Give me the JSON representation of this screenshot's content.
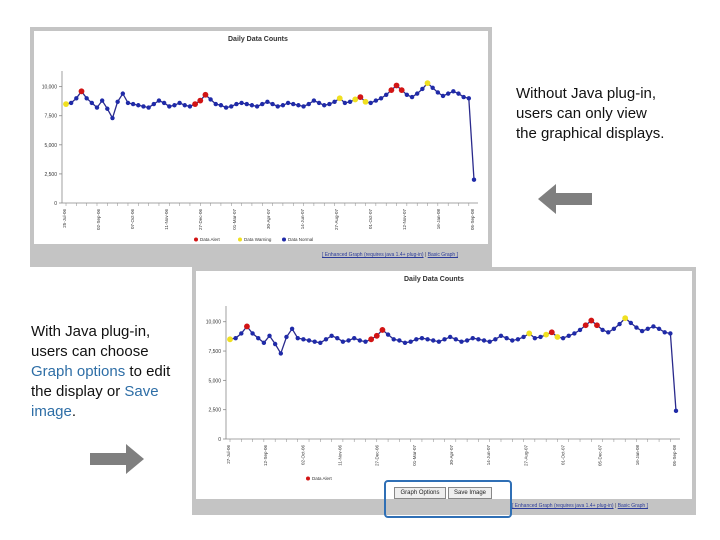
{
  "top_panel": {
    "footer": {
      "enhanced_link": "[ Enhanced Graph (requires java 1.4+ plug-in)",
      "separator": "|",
      "basic_link": "Basic Graph ]"
    }
  },
  "bottom_panel": {
    "buttons": {
      "graph_options": "Graph Options",
      "save_image": "Save Image"
    },
    "footer": {
      "enhanced_link": "[ Enhanced Graph (requires java 1.4+ plug-in)",
      "separator": "|",
      "basic_link": "Basic Graph ]"
    }
  },
  "callouts": {
    "top_right": "Without Java plug-in, users can only view the graphical displays.",
    "bottom_left_prefix": "With Java plug-in, users can choose ",
    "bottom_left_graph_options": "Graph options",
    "bottom_left_middle": " to edit the display or ",
    "bottom_left_save_image": "Save image",
    "bottom_left_suffix": "."
  },
  "colors": {
    "line": "#2a2a8c",
    "normal": "#1f2aa8",
    "warning": "#f0e020",
    "alert": "#d21414",
    "panel_border": "#c4c4c4",
    "highlight": "#2f6fb5"
  },
  "icons": {
    "left_arrow": "arrow-left-icon",
    "right_arrow": "arrow-right-icon"
  },
  "chart_data": [
    {
      "type": "line",
      "title": "Daily Data Counts",
      "ylim": [
        0,
        11000
      ],
      "yticks": [
        "0",
        "2,500",
        "5,000",
        "7,500",
        "10,000"
      ],
      "xlabels": [
        "25-Jul-06",
        "02-Sep-06",
        "07-Oct-06",
        "11-Nov-06",
        "27-Dec-06",
        "01-Mar-07",
        "30-Apr-07",
        "14-Jun-07",
        "27-Aug-07",
        "01-Oct-07",
        "12-Nov-07",
        "16-Jan-08",
        "05-Sep-08"
      ],
      "legend": [
        {
          "name": "Data Alert",
          "color": "#d21414"
        },
        {
          "name": "Data Warning",
          "color": "#f0e020"
        },
        {
          "name": "Data Normal",
          "color": "#1f2aa8"
        }
      ],
      "values": [
        8500,
        8600,
        9000,
        9600,
        9000,
        8600,
        8200,
        8800,
        8100,
        7300,
        8700,
        9400,
        8600,
        8500,
        8400,
        8300,
        8200,
        8500,
        8800,
        8600,
        8300,
        8400,
        8600,
        8400,
        8300,
        8500,
        8800,
        9300,
        8900,
        8500,
        8400,
        8200,
        8300,
        8500,
        8600,
        8500,
        8400,
        8300,
        8500,
        8700,
        8500,
        8300,
        8400,
        8600,
        8500,
        8400,
        8300,
        8500,
        8800,
        8600,
        8400,
        8500,
        8700,
        9000,
        8600,
        8700,
        8900,
        9100,
        8700,
        8600,
        8800,
        9000,
        9300,
        9700,
        10100,
        9700,
        9300,
        9100,
        9400,
        9800,
        10300,
        9900,
        9500,
        9200,
        9400,
        9600,
        9400,
        9100,
        9000,
        2000
      ],
      "status": [
        "w",
        "n",
        "n",
        "a",
        "n",
        "n",
        "n",
        "n",
        "n",
        "n",
        "n",
        "n",
        "n",
        "n",
        "n",
        "n",
        "n",
        "n",
        "n",
        "n",
        "n",
        "n",
        "n",
        "n",
        "n",
        "a",
        "a",
        "a",
        "n",
        "n",
        "n",
        "n",
        "n",
        "n",
        "n",
        "n",
        "n",
        "n",
        "n",
        "n",
        "n",
        "n",
        "n",
        "n",
        "n",
        "n",
        "n",
        "n",
        "n",
        "n",
        "n",
        "n",
        "n",
        "w",
        "n",
        "n",
        "w",
        "a",
        "w",
        "n",
        "n",
        "n",
        "n",
        "a",
        "a",
        "a",
        "n",
        "n",
        "n",
        "n",
        "w",
        "n",
        "n",
        "n",
        "n",
        "n",
        "n",
        "n",
        "n",
        "n"
      ]
    },
    {
      "type": "line",
      "title": "Daily Data Counts",
      "ylim": [
        0,
        11000
      ],
      "yticks": [
        "0",
        "2,500",
        "5,000",
        "7,500",
        "10,000"
      ],
      "xlabels": [
        "27-Jul-06",
        "12-Sep-06",
        "02-Oct-06",
        "11-Nov-06",
        "27-Dec-06",
        "01-Mar-07",
        "30-Apr-07",
        "14-Jun-07",
        "27-Aug-07",
        "01-Oct-07",
        "05-Dec-07",
        "16-Jan-08",
        "05-Sep-08"
      ],
      "legend": [
        {
          "name": "Data Alert",
          "color": "#d21414"
        }
      ],
      "values": [
        8500,
        8600,
        9000,
        9600,
        9000,
        8600,
        8200,
        8800,
        8100,
        7300,
        8700,
        9400,
        8600,
        8500,
        8400,
        8300,
        8200,
        8500,
        8800,
        8600,
        8300,
        8400,
        8600,
        8400,
        8300,
        8500,
        8800,
        9300,
        8900,
        8500,
        8400,
        8200,
        8300,
        8500,
        8600,
        8500,
        8400,
        8300,
        8500,
        8700,
        8500,
        8300,
        8400,
        8600,
        8500,
        8400,
        8300,
        8500,
        8800,
        8600,
        8400,
        8500,
        8700,
        9000,
        8600,
        8700,
        8900,
        9100,
        8700,
        8600,
        8800,
        9000,
        9300,
        9700,
        10100,
        9700,
        9300,
        9100,
        9400,
        9800,
        10300,
        9900,
        9500,
        9200,
        9400,
        9600,
        9400,
        9100,
        9000,
        2400
      ],
      "status": [
        "w",
        "n",
        "n",
        "a",
        "n",
        "n",
        "n",
        "n",
        "n",
        "n",
        "n",
        "n",
        "n",
        "n",
        "n",
        "n",
        "n",
        "n",
        "n",
        "n",
        "n",
        "n",
        "n",
        "n",
        "n",
        "a",
        "a",
        "a",
        "n",
        "n",
        "n",
        "n",
        "n",
        "n",
        "n",
        "n",
        "n",
        "n",
        "n",
        "n",
        "n",
        "n",
        "n",
        "n",
        "n",
        "n",
        "n",
        "n",
        "n",
        "n",
        "n",
        "n",
        "n",
        "w",
        "n",
        "n",
        "w",
        "a",
        "w",
        "n",
        "n",
        "n",
        "n",
        "a",
        "a",
        "a",
        "n",
        "n",
        "n",
        "n",
        "w",
        "n",
        "n",
        "n",
        "n",
        "n",
        "n",
        "n",
        "n",
        "n"
      ]
    }
  ]
}
